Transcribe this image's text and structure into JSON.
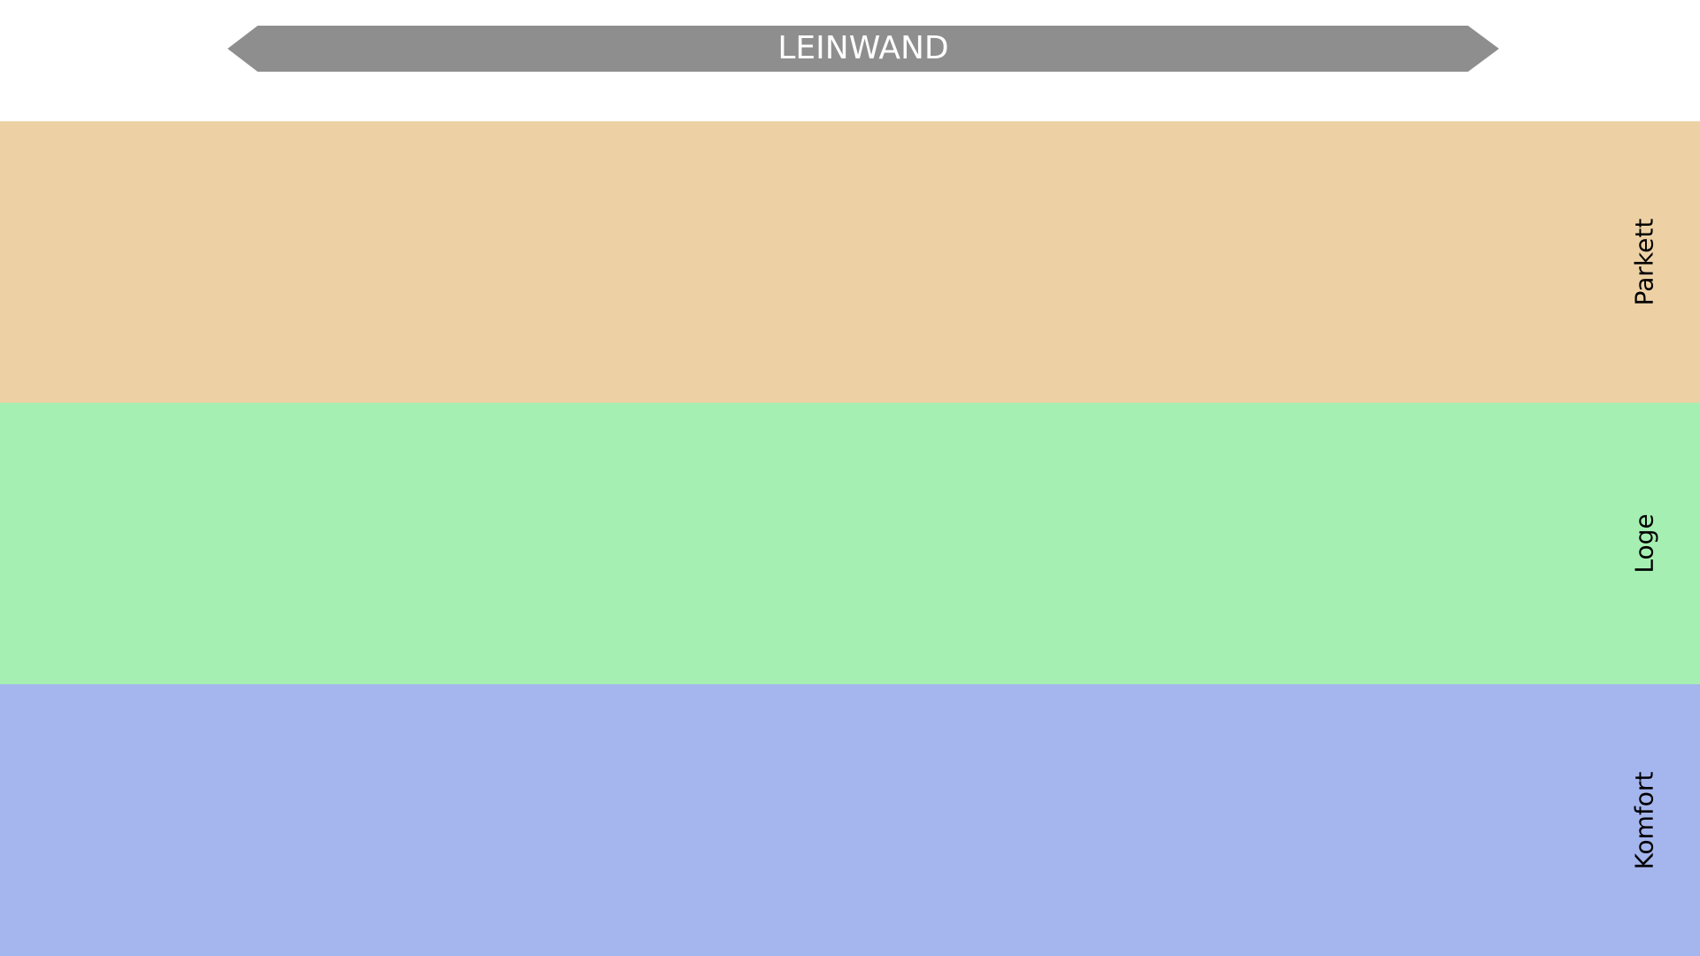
{
  "screen": {
    "label": "LEINWAND",
    "color": "#8e8e8e",
    "text_color": "#ffffff"
  },
  "zones": [
    {
      "label": "Parkett",
      "color": "#edd1a5"
    },
    {
      "label": "Loge",
      "color": "#a5efb2"
    },
    {
      "label": "Komfort",
      "color": "#a5b5ed"
    }
  ]
}
